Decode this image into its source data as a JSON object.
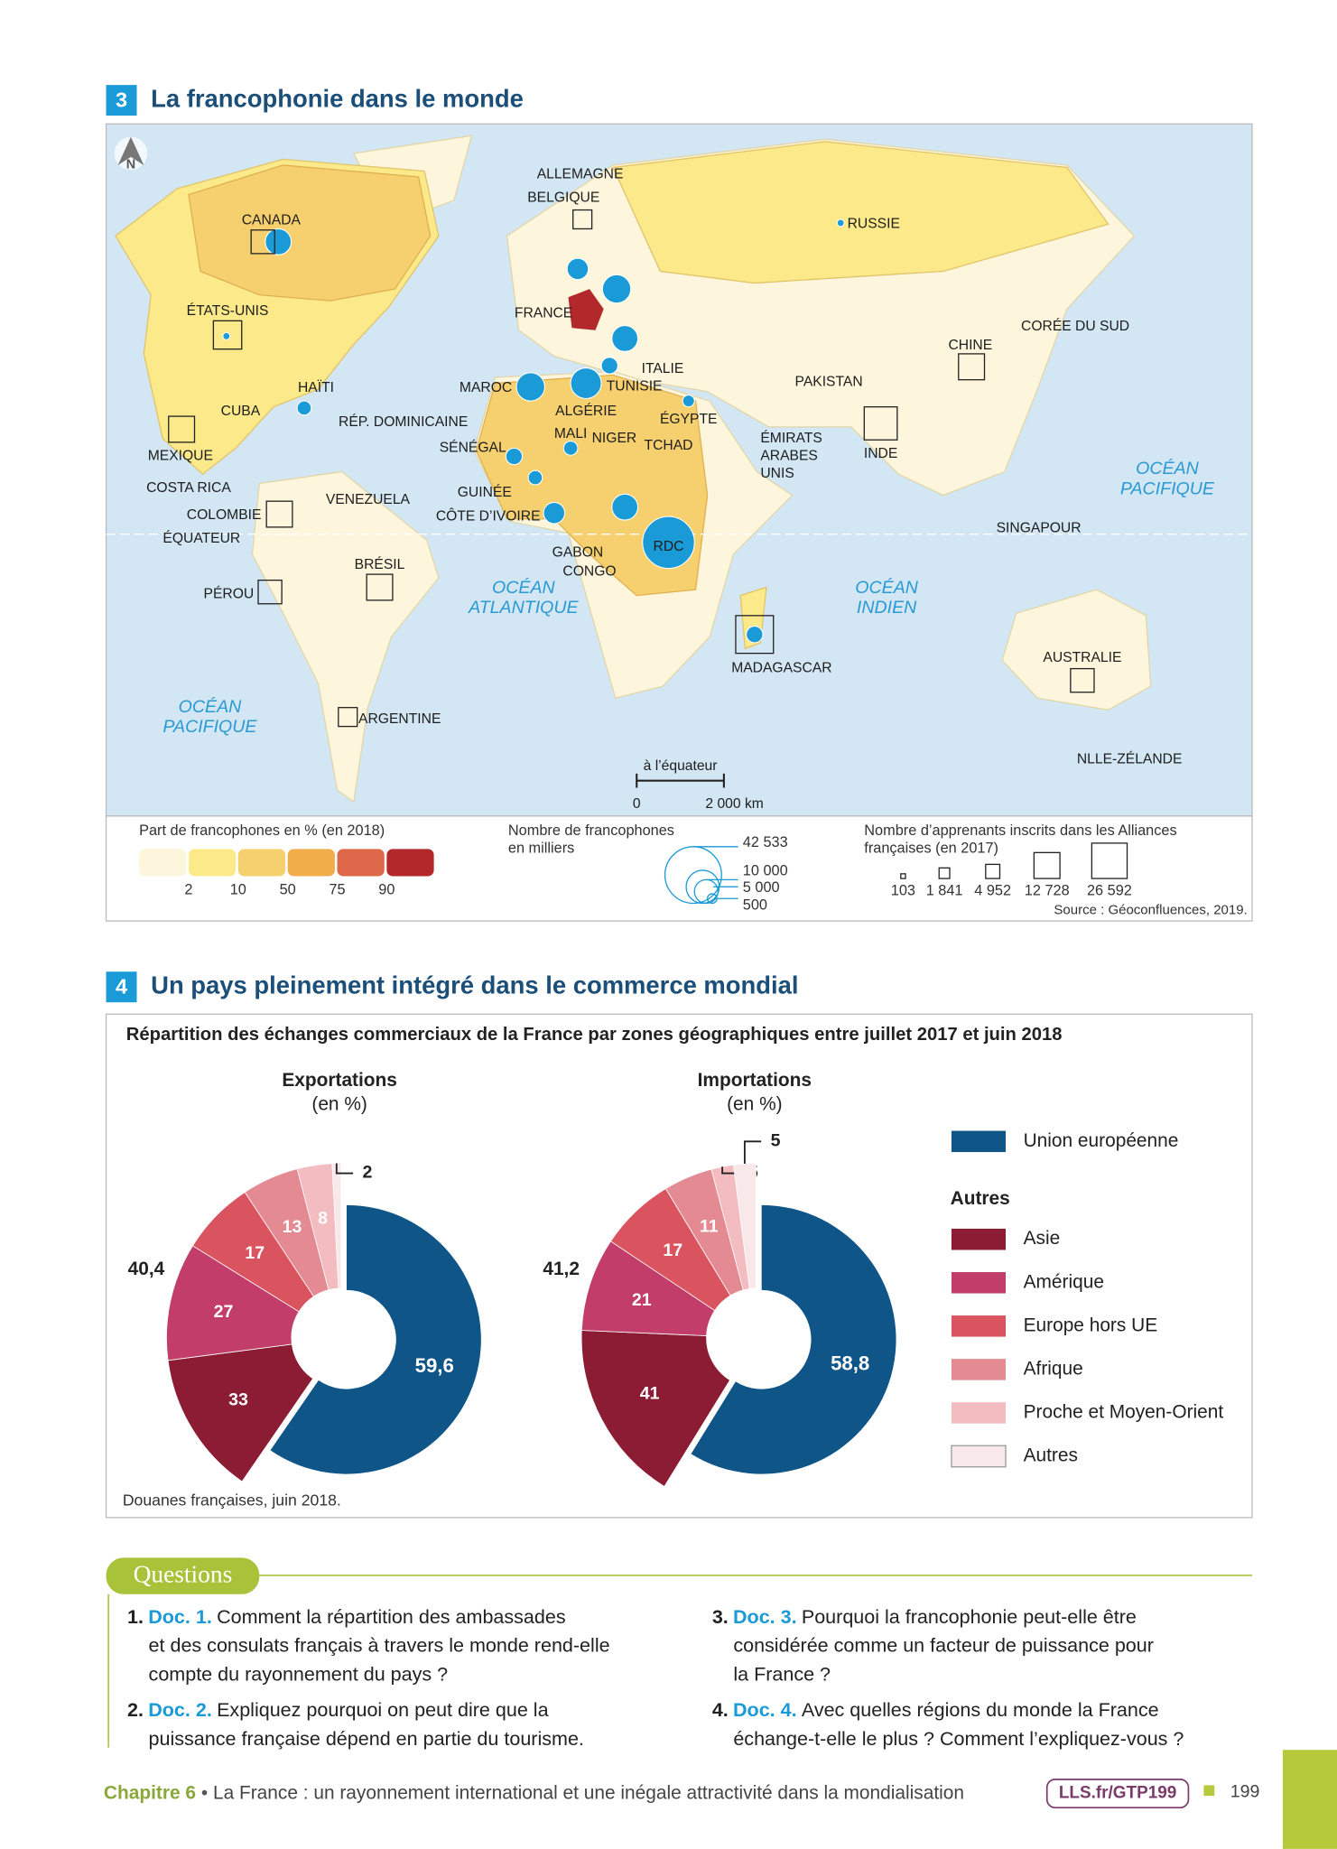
{
  "doc3": {
    "number": "3",
    "title": "La francophonie dans le monde"
  },
  "map": {
    "north": "N",
    "labels": [
      "ALLEMAGNE",
      "BELGIQUE",
      "CANADA",
      "RUSSIE",
      "ÉTATS-UNIS",
      "FRANCE",
      "CORÉE DU SUD",
      "CHINE",
      "ITALIE",
      "PAKISTAN",
      "HAÏTI",
      "MAROC",
      "TUNISIE",
      "CUBA",
      "RÉP. DOMINICAINE",
      "ALGÉRIE",
      "ÉGYPTE",
      "MALI",
      "NIGER",
      [
        "ÉMIRATS",
        "ARABES",
        "UNIS"
      ],
      "SÉNÉGAL",
      "TCHAD",
      "MEXIQUE",
      "INDE",
      "COSTA RICA",
      "GUINÉE",
      "VENEZUELA",
      "CÔTE D’IVOIRE",
      "COLOMBIE",
      "ÉQUATEUR",
      "SINGAPOUR",
      "RDC",
      "GABON",
      "CONGO",
      "BRÉSIL",
      "PÉROU",
      "AUSTRALIE",
      "MADAGASCAR",
      "ARGENTINE",
      "NLLE-ZÉLANDE"
    ],
    "oceans": [
      [
        "OCÉAN",
        "PACIFIQUE"
      ],
      [
        "OCÉAN",
        "ATLANTIQUE"
      ],
      [
        "OCÉAN",
        "INDIEN"
      ],
      [
        "OCÉAN",
        "PACIFIQUE"
      ]
    ],
    "scale": {
      "caption": "à l’équateur",
      "zero": "0",
      "length": "2 000 km"
    },
    "legend_share": {
      "title": "Part de francophones en % (en 2018)",
      "colors": [
        "#fdf6dc",
        "#fbe98a",
        "#f6d06e",
        "#f0ad4a",
        "#dc6749",
        "#b3282a"
      ],
      "thresholds": [
        2,
        10,
        50,
        75,
        90
      ]
    },
    "legend_speakers": {
      "title": [
        "Nombre de francophones",
        "en milliers"
      ],
      "values": [
        "42 533",
        "10 000",
        "5 000",
        "500"
      ]
    },
    "legend_learners": {
      "title": [
        "Nombre d’apprenants inscrits dans les Alliances",
        "françaises (en 2017)"
      ],
      "values": [
        "103",
        "1 841",
        "4 952",
        "12 728",
        "26 592"
      ]
    },
    "source": "Source : Géoconfluences, 2019."
  },
  "doc4": {
    "number": "4",
    "title": "Un pays pleinement intégré dans le commerce mondial",
    "subtitle": "Répartition des échanges commerciaux de la France par zones géographiques entre juillet 2017 et juin 2018",
    "source": "Douanes françaises, juin 2018.",
    "legend": {
      "main": {
        "name": "Union européenne",
        "color": "#0f5587"
      },
      "group": "Autres",
      "items": [
        {
          "name": "Asie",
          "color": "#8b1c33"
        },
        {
          "name": "Amérique",
          "color": "#c23d6a"
        },
        {
          "name": "Europe hors UE",
          "color": "#d9545e"
        },
        {
          "name": "Afrique",
          "color": "#e38a93"
        },
        {
          "name": "Proche et Moyen-Orient",
          "color": "#f2bcc0"
        },
        {
          "name": "Autres",
          "color": "#f9e8ea"
        }
      ]
    }
  },
  "chart_data": [
    {
      "type": "donut",
      "title": "Exportations",
      "subtitle": "(en %)",
      "values": [
        59.6,
        40.4
      ],
      "value_labels": [
        "59,6",
        "40,4"
      ],
      "breakdown": [
        33,
        27,
        17,
        13,
        8,
        2
      ]
    },
    {
      "type": "donut",
      "title": "Importations",
      "subtitle": "(en %)",
      "values": [
        58.8,
        41.2
      ],
      "value_labels": [
        "58,8",
        "41,2"
      ],
      "breakdown": [
        41,
        21,
        17,
        11,
        5,
        5
      ]
    }
  ],
  "questions": {
    "heading": "Questions",
    "items": [
      {
        "number": "1.",
        "ref": "Doc. 1.",
        "lines": [
          "Comment la répartition des ambassades",
          "et des consulats français à travers le monde rend-elle",
          "compte du rayonnement du pays ?"
        ]
      },
      {
        "number": "2.",
        "ref": "Doc. 2.",
        "lines": [
          "Expliquez pourquoi on peut dire que la",
          "puissance française dépend en partie du tourisme."
        ]
      },
      {
        "number": "3.",
        "ref": "Doc. 3.",
        "lines": [
          "Pourquoi la francophonie peut-elle être",
          "considérée comme un facteur de puissance pour",
          "la France ?"
        ]
      },
      {
        "number": "4.",
        "ref": "Doc. 4.",
        "lines": [
          "Avec quelles régions du monde la France",
          "échange-t-elle le plus ? Comment l’expliquez-vous ?"
        ]
      }
    ]
  },
  "footer": {
    "chapter": "Chapitre 6",
    "separator": "•",
    "text": "La France : un rayonnement international et une inégale attractivité dans la mondialisation",
    "link": "LLS.fr/GTP199",
    "page": "199"
  }
}
